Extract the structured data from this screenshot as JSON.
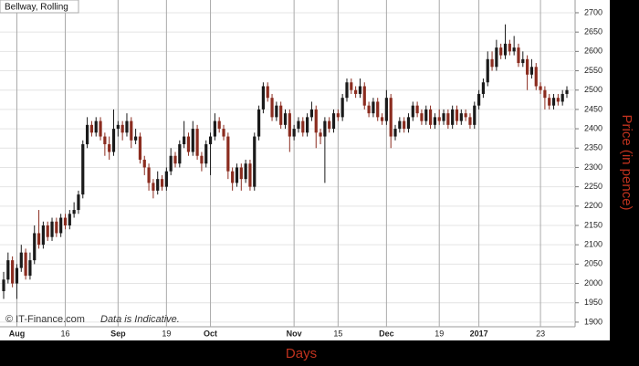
{
  "chart_data": {
    "type": "candlestick",
    "title": "Bellway, Rolling",
    "watermark": "© IT-Finance.com",
    "note": "Data is Indicative.",
    "x_label": "Days",
    "y_label": "Price (in pence)",
    "up_color": "#1a1a1a",
    "down_color": "#8b2c1f",
    "categories": [
      null,
      null,
      null,
      "Aug",
      null,
      null,
      null,
      null,
      null,
      null,
      null,
      null,
      null,
      null,
      "16",
      null,
      null,
      null,
      null,
      null,
      null,
      null,
      null,
      null,
      null,
      null,
      "Sep",
      null,
      null,
      null,
      null,
      null,
      null,
      null,
      null,
      null,
      null,
      "19",
      null,
      null,
      null,
      null,
      null,
      null,
      null,
      null,
      null,
      "Oct",
      null,
      null,
      null,
      null,
      null,
      null,
      null,
      null,
      null,
      null,
      null,
      null,
      null,
      null,
      null,
      null,
      null,
      null,
      "Nov",
      null,
      null,
      null,
      null,
      null,
      null,
      null,
      null,
      null,
      "15",
      null,
      null,
      null,
      null,
      null,
      null,
      null,
      null,
      null,
      null,
      "Dec",
      null,
      null,
      null,
      null,
      null,
      null,
      null,
      null,
      null,
      null,
      null,
      "19",
      null,
      null,
      null,
      null,
      null,
      null,
      null,
      null,
      "2017",
      null,
      null,
      null,
      null,
      null,
      null,
      null,
      null,
      null,
      null,
      null,
      null,
      null,
      "23",
      null,
      null,
      null,
      null,
      null,
      null
    ],
    "ohlc": [
      [
        1980,
        2030,
        1960,
        2010
      ],
      [
        2010,
        2080,
        2000,
        2060
      ],
      [
        2060,
        2070,
        1990,
        2000
      ],
      [
        2000,
        2050,
        1960,
        2040
      ],
      [
        2040,
        2100,
        2030,
        2080
      ],
      [
        2080,
        2090,
        2010,
        2020
      ],
      [
        2020,
        2080,
        2010,
        2060
      ],
      [
        2060,
        2150,
        2050,
        2130
      ],
      [
        2130,
        2190,
        2090,
        2100
      ],
      [
        2100,
        2160,
        2090,
        2150
      ],
      [
        2150,
        2160,
        2110,
        2120
      ],
      [
        2120,
        2170,
        2110,
        2160
      ],
      [
        2160,
        2170,
        2120,
        2130
      ],
      [
        2130,
        2180,
        2120,
        2170
      ],
      [
        2170,
        2180,
        2140,
        2150
      ],
      [
        2150,
        2190,
        2140,
        2180
      ],
      [
        2180,
        2210,
        2170,
        2190
      ],
      [
        2190,
        2240,
        2180,
        2230
      ],
      [
        2230,
        2370,
        2220,
        2360
      ],
      [
        2360,
        2430,
        2350,
        2410
      ],
      [
        2410,
        2420,
        2380,
        2390
      ],
      [
        2390,
        2430,
        2380,
        2420
      ],
      [
        2420,
        2430,
        2370,
        2380
      ],
      [
        2380,
        2390,
        2330,
        2360
      ],
      [
        2360,
        2380,
        2320,
        2340
      ],
      [
        2340,
        2450,
        2330,
        2400
      ],
      [
        2400,
        2420,
        2380,
        2410
      ],
      [
        2410,
        2420,
        2370,
        2390
      ],
      [
        2390,
        2440,
        2380,
        2420
      ],
      [
        2420,
        2430,
        2350,
        2370
      ],
      [
        2370,
        2400,
        2360,
        2380
      ],
      [
        2380,
        2390,
        2310,
        2320
      ],
      [
        2320,
        2330,
        2280,
        2300
      ],
      [
        2300,
        2310,
        2240,
        2260
      ],
      [
        2260,
        2270,
        2220,
        2240
      ],
      [
        2240,
        2290,
        2230,
        2270
      ],
      [
        2270,
        2280,
        2240,
        2250
      ],
      [
        2250,
        2300,
        2240,
        2290
      ],
      [
        2290,
        2350,
        2280,
        2330
      ],
      [
        2330,
        2340,
        2300,
        2310
      ],
      [
        2310,
        2370,
        2300,
        2360
      ],
      [
        2360,
        2420,
        2350,
        2380
      ],
      [
        2380,
        2390,
        2330,
        2340
      ],
      [
        2340,
        2420,
        2330,
        2400
      ],
      [
        2400,
        2410,
        2320,
        2330
      ],
      [
        2330,
        2340,
        2290,
        2310
      ],
      [
        2310,
        2370,
        2300,
        2360
      ],
      [
        2360,
        2390,
        2280,
        2380
      ],
      [
        2380,
        2440,
        2370,
        2420
      ],
      [
        2420,
        2430,
        2390,
        2400
      ],
      [
        2400,
        2410,
        2370,
        2380
      ],
      [
        2380,
        2390,
        2270,
        2290
      ],
      [
        2290,
        2300,
        2240,
        2260
      ],
      [
        2260,
        2310,
        2250,
        2300
      ],
      [
        2300,
        2310,
        2240,
        2270
      ],
      [
        2270,
        2320,
        2260,
        2310
      ],
      [
        2310,
        2320,
        2240,
        2250
      ],
      [
        2250,
        2390,
        2240,
        2380
      ],
      [
        2380,
        2460,
        2370,
        2450
      ],
      [
        2450,
        2520,
        2440,
        2510
      ],
      [
        2510,
        2520,
        2470,
        2480
      ],
      [
        2480,
        2490,
        2420,
        2430
      ],
      [
        2430,
        2470,
        2420,
        2460
      ],
      [
        2460,
        2470,
        2400,
        2410
      ],
      [
        2410,
        2450,
        2400,
        2440
      ],
      [
        2440,
        2450,
        2340,
        2380
      ],
      [
        2380,
        2410,
        2370,
        2400
      ],
      [
        2400,
        2430,
        2390,
        2420
      ],
      [
        2420,
        2430,
        2380,
        2390
      ],
      [
        2390,
        2440,
        2380,
        2430
      ],
      [
        2430,
        2470,
        2420,
        2450
      ],
      [
        2450,
        2460,
        2350,
        2390
      ],
      [
        2390,
        2400,
        2360,
        2380
      ],
      [
        2380,
        2430,
        2260,
        2420
      ],
      [
        2420,
        2430,
        2390,
        2400
      ],
      [
        2400,
        2450,
        2390,
        2440
      ],
      [
        2440,
        2450,
        2420,
        2430
      ],
      [
        2430,
        2490,
        2420,
        2480
      ],
      [
        2480,
        2530,
        2470,
        2520
      ],
      [
        2520,
        2530,
        2490,
        2500
      ],
      [
        2500,
        2510,
        2480,
        2490
      ],
      [
        2490,
        2530,
        2480,
        2510
      ],
      [
        2510,
        2520,
        2450,
        2460
      ],
      [
        2460,
        2470,
        2430,
        2440
      ],
      [
        2440,
        2480,
        2430,
        2470
      ],
      [
        2470,
        2480,
        2420,
        2430
      ],
      [
        2430,
        2440,
        2410,
        2420
      ],
      [
        2420,
        2500,
        2410,
        2480
      ],
      [
        2480,
        2490,
        2350,
        2380
      ],
      [
        2380,
        2410,
        2370,
        2400
      ],
      [
        2400,
        2430,
        2390,
        2420
      ],
      [
        2420,
        2430,
        2390,
        2400
      ],
      [
        2400,
        2440,
        2390,
        2430
      ],
      [
        2430,
        2470,
        2420,
        2460
      ],
      [
        2460,
        2470,
        2430,
        2440
      ],
      [
        2440,
        2450,
        2410,
        2420
      ],
      [
        2420,
        2460,
        2410,
        2450
      ],
      [
        2450,
        2460,
        2400,
        2410
      ],
      [
        2410,
        2440,
        2400,
        2430
      ],
      [
        2430,
        2450,
        2410,
        2420
      ],
      [
        2420,
        2450,
        2410,
        2440
      ],
      [
        2440,
        2450,
        2400,
        2410
      ],
      [
        2410,
        2460,
        2400,
        2450
      ],
      [
        2450,
        2460,
        2410,
        2420
      ],
      [
        2420,
        2450,
        2410,
        2440
      ],
      [
        2440,
        2450,
        2420,
        2430
      ],
      [
        2430,
        2440,
        2400,
        2410
      ],
      [
        2410,
        2470,
        2400,
        2460
      ],
      [
        2460,
        2500,
        2450,
        2490
      ],
      [
        2490,
        2530,
        2480,
        2520
      ],
      [
        2520,
        2600,
        2510,
        2580
      ],
      [
        2580,
        2600,
        2550,
        2560
      ],
      [
        2560,
        2630,
        2550,
        2610
      ],
      [
        2610,
        2620,
        2580,
        2590
      ],
      [
        2590,
        2670,
        2580,
        2620
      ],
      [
        2620,
        2630,
        2590,
        2600
      ],
      [
        2600,
        2640,
        2590,
        2610
      ],
      [
        2610,
        2620,
        2560,
        2570
      ],
      [
        2570,
        2600,
        2560,
        2580
      ],
      [
        2580,
        2590,
        2500,
        2540
      ],
      [
        2540,
        2580,
        2530,
        2560
      ],
      [
        2560,
        2570,
        2500,
        2510
      ],
      [
        2510,
        2520,
        2490,
        2500
      ],
      [
        2500,
        2510,
        2450,
        2480
      ],
      [
        2480,
        2490,
        2450,
        2460
      ],
      [
        2460,
        2490,
        2450,
        2480
      ],
      [
        2480,
        2490,
        2460,
        2470
      ],
      [
        2470,
        2500,
        2460,
        2490
      ],
      [
        2490,
        2510,
        2480,
        2500
      ]
    ],
    "ylim": [
      1888,
      2733
    ],
    "yticks": [
      1900,
      1950,
      2000,
      2050,
      2100,
      2150,
      2200,
      2250,
      2300,
      2350,
      2400,
      2450,
      2500,
      2550,
      2600,
      2650,
      2700
    ],
    "grid": true
  }
}
